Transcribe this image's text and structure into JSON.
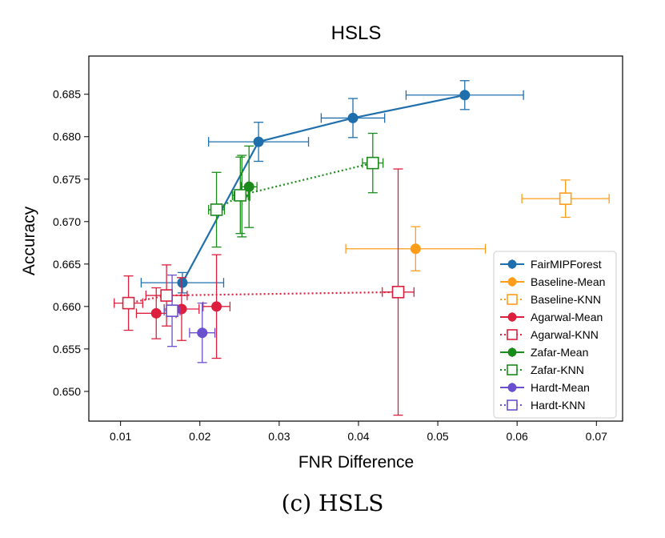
{
  "chart_data": {
    "type": "scatter",
    "title": "HSLS",
    "xlabel": "FNR Difference",
    "ylabel": "Accuracy",
    "xlim": [
      0.006,
      0.0733
    ],
    "ylim": [
      0.6465,
      0.6895
    ],
    "xticks": [
      0.01,
      0.02,
      0.03,
      0.04,
      0.05,
      0.06,
      0.07
    ],
    "xtick_labels": [
      "0.01",
      "0.02",
      "0.03",
      "0.04",
      "0.05",
      "0.06",
      "0.07"
    ],
    "yticks": [
      0.65,
      0.655,
      0.66,
      0.665,
      0.67,
      0.675,
      0.68,
      0.685
    ],
    "ytick_labels": [
      "0.650",
      "0.655",
      "0.660",
      "0.665",
      "0.670",
      "0.675",
      "0.680",
      "0.685"
    ],
    "grid": false,
    "legend_position": "lower-right",
    "series": [
      {
        "name": "FairMIPForest",
        "color": "#1f6fad",
        "marker": "filled-circle",
        "line": "solid",
        "points": [
          {
            "x": 0.0178,
            "y": 0.6628,
            "xerr": 0.0052,
            "yerr": 0.0012
          },
          {
            "x": 0.0274,
            "y": 0.6794,
            "xerr": 0.0063,
            "yerr": 0.0023
          },
          {
            "x": 0.0393,
            "y": 0.6822,
            "xerr": 0.004,
            "yerr": 0.0023
          },
          {
            "x": 0.0534,
            "y": 0.6849,
            "xerr": 0.0074,
            "yerr": 0.0017
          }
        ]
      },
      {
        "name": "Baseline-Mean",
        "color": "#ff9c1a",
        "marker": "filled-circle",
        "line": "none",
        "points": [
          {
            "x": 0.0472,
            "y": 0.6668,
            "xerr": 0.0088,
            "yerr": 0.0026
          }
        ]
      },
      {
        "name": "Baseline-KNN",
        "color": "#ff9c1a",
        "marker": "open-square",
        "line": "none",
        "points": [
          {
            "x": 0.0661,
            "y": 0.6727,
            "xerr": 0.0055,
            "yerr": 0.0022
          }
        ]
      },
      {
        "name": "Agarwal-Mean",
        "color": "#dc1f3c",
        "marker": "filled-circle",
        "line": "none",
        "points": [
          {
            "x": 0.0145,
            "y": 0.6592,
            "xerr": 0.0025,
            "yerr": 0.003
          },
          {
            "x": 0.0177,
            "y": 0.6597,
            "xerr": 0.0022,
            "yerr": 0.0037
          },
          {
            "x": 0.0221,
            "y": 0.66,
            "xerr": 0.0017,
            "yerr": 0.0061
          }
        ]
      },
      {
        "name": "Agarwal-KNN",
        "color": "#dc1f3c",
        "marker": "open-square",
        "line": "dotted",
        "points": [
          {
            "x": 0.011,
            "y": 0.6604,
            "xerr": 0.0018,
            "yerr": 0.0032
          },
          {
            "x": 0.0158,
            "y": 0.6613,
            "xerr": 0.0026,
            "yerr": 0.0036
          },
          {
            "x": 0.045,
            "y": 0.6617,
            "xerr": 0.002,
            "yerr": 0.0145
          }
        ]
      },
      {
        "name": "Zafar-Mean",
        "color": "#1a8a1a",
        "marker": "filled-circle",
        "line": "none",
        "points": [
          {
            "x": 0.0253,
            "y": 0.673,
            "xerr": 0.001,
            "yerr": 0.0048
          },
          {
            "x": 0.0262,
            "y": 0.6741,
            "xerr": 0.001,
            "yerr": 0.0048
          }
        ]
      },
      {
        "name": "Zafar-KNN",
        "color": "#1a8a1a",
        "marker": "open-square",
        "line": "dotted",
        "points": [
          {
            "x": 0.0221,
            "y": 0.6714,
            "xerr": 0.001,
            "yerr": 0.0044
          },
          {
            "x": 0.0251,
            "y": 0.6731,
            "xerr": 0.001,
            "yerr": 0.0045
          },
          {
            "x": 0.0418,
            "y": 0.6769,
            "xerr": 0.0013,
            "yerr": 0.0035
          }
        ]
      },
      {
        "name": "Hardt-Mean",
        "color": "#6a4fcf",
        "marker": "filled-circle",
        "line": "none",
        "points": [
          {
            "x": 0.0203,
            "y": 0.6569,
            "xerr": 0.0016,
            "yerr": 0.0035
          }
        ]
      },
      {
        "name": "Hardt-KNN",
        "color": "#6a4fcf",
        "marker": "open-square",
        "line": "dotted",
        "points": [
          {
            "x": 0.0165,
            "y": 0.6595,
            "xerr": 0.001,
            "yerr": 0.0042
          }
        ]
      }
    ]
  },
  "caption": "(c) HSLS"
}
